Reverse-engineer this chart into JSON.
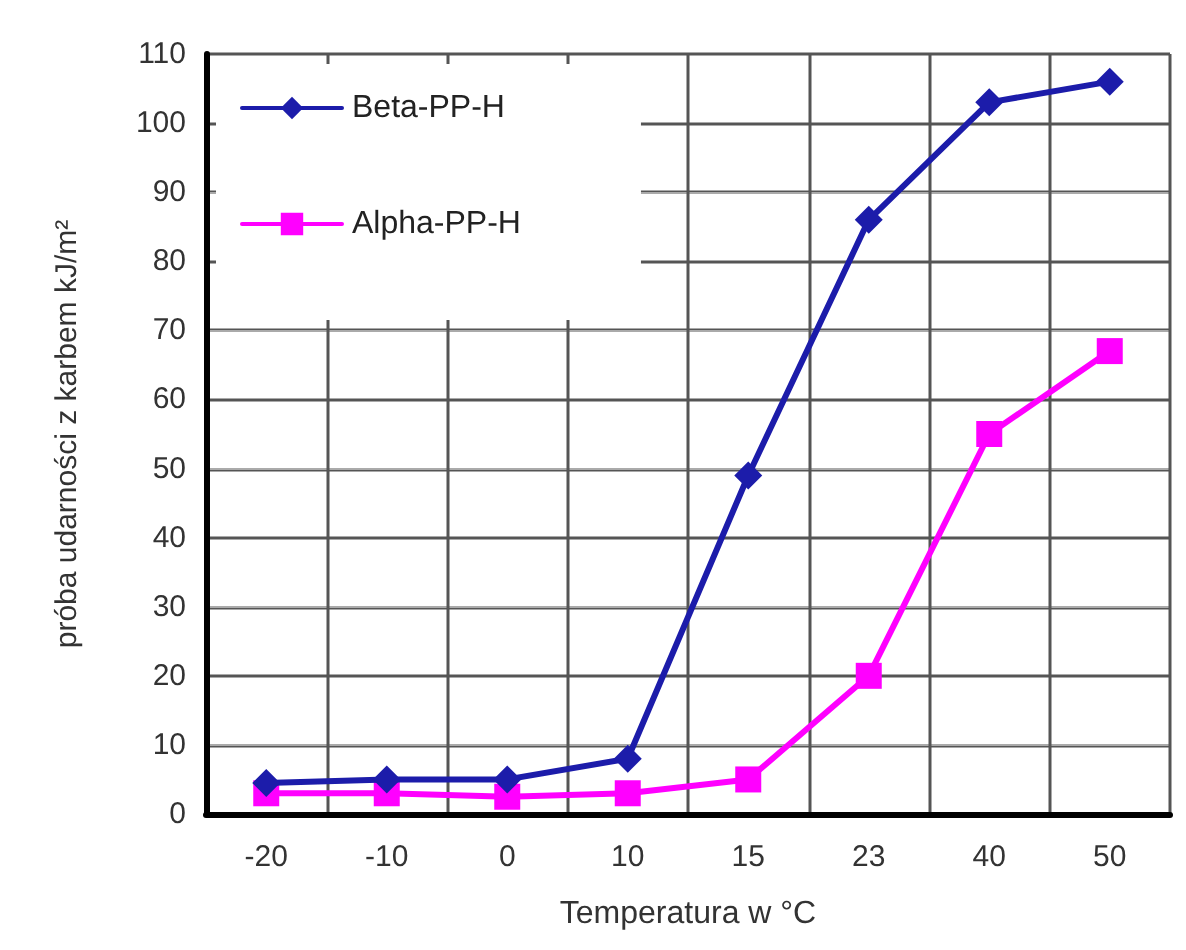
{
  "chart_data": {
    "type": "line",
    "xlabel": "Temperatura w °C",
    "ylabel": "próba udarności z karbem kJ/m²",
    "categories": [
      "-20",
      "-10",
      "0",
      "10",
      "15",
      "23",
      "40",
      "50"
    ],
    "series": [
      {
        "name": "Beta-PP-H",
        "color": "#1c1caa",
        "marker": "diamond",
        "values": [
          4.5,
          5,
          5,
          8,
          49,
          86,
          103,
          106
        ]
      },
      {
        "name": "Alpha-PP-H",
        "color": "#ff00ff",
        "marker": "square",
        "values": [
          3,
          3,
          2.5,
          3,
          5,
          20,
          55,
          67
        ]
      }
    ],
    "ylim": [
      0,
      110
    ],
    "yticks": [
      0,
      10,
      20,
      30,
      40,
      50,
      60,
      70,
      80,
      90,
      100,
      110
    ],
    "grid": true,
    "legend": "top left",
    "line_style": "solid"
  }
}
